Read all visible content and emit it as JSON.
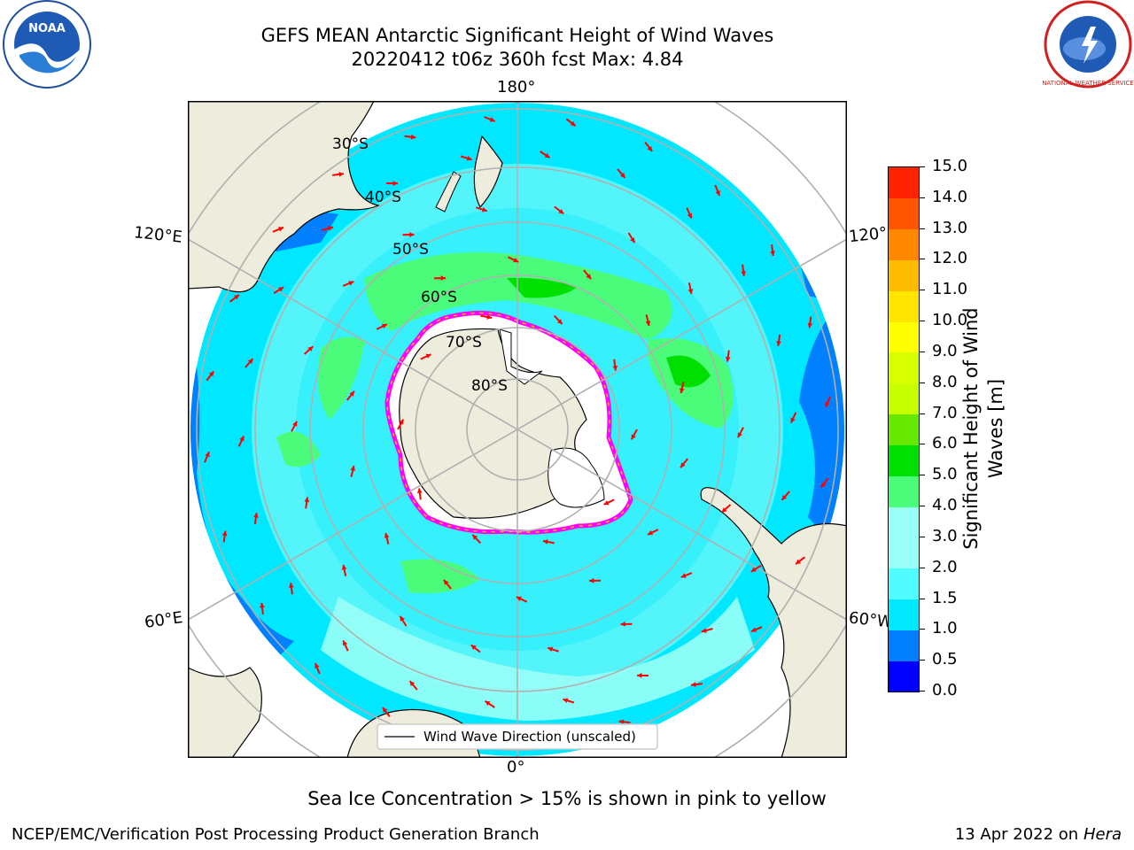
{
  "title": {
    "line1": "GEFS MEAN Antarctic Significant Height of Wind Waves",
    "line2": "20220412 t06z 360h fcst   Max: 4.84"
  },
  "logos": {
    "noaa": "NOAA",
    "nws": "NATIONAL WEATHER SERVICE"
  },
  "map": {
    "lon_labels": {
      "top": "180°",
      "bottom": "0°",
      "left_upper": "120°E",
      "left_lower": "60°E",
      "right_upper": "120°",
      "right_lower": "60°W"
    },
    "lat_labels": [
      "30°S",
      "40°S",
      "50°S",
      "60°S",
      "70°S",
      "80°S"
    ],
    "legend_label": "Wind Wave Direction (unscaled)",
    "colors": {
      "ocean_low": "#00e8ff",
      "ocean_mid": "#99fff6",
      "ocean_high": "#4bfc7a",
      "ocean_peak": "#00e000",
      "deep_low": "#0080ff",
      "land": "#eeecdc",
      "sea_ice_edge": "#ff00ff",
      "arrow": "#ff0000"
    }
  },
  "colorbar": {
    "label": "Significant Height of Wind Waves [m]",
    "label_line1": "Significant Height of Wind",
    "label_line2": "Waves [m]",
    "ticks": [
      "0.0",
      "0.5",
      "1.0",
      "1.5",
      "2.0",
      "3.0",
      "4.0",
      "5.0",
      "6.0",
      "7.0",
      "8.0",
      "9.0",
      "10.0",
      "11.0",
      "12.0",
      "13.0",
      "14.0",
      "15.0"
    ],
    "colors": [
      "#0000ff",
      "#0080ff",
      "#00e8ff",
      "#50fcff",
      "#99fff6",
      "#99fff6",
      "#4bfc7a",
      "#00e000",
      "#66e800",
      "#c8ff00",
      "#d8ff00",
      "#ffff00",
      "#ffe600",
      "#ffbb00",
      "#ff8800",
      "#ff5500",
      "#ff2200"
    ]
  },
  "subtitle": "Sea Ice Concentration > 15% is shown in pink to yellow",
  "footer": {
    "left": "NCEP/EMC/Verification Post Processing Product Generation Branch",
    "right_prefix": "13 Apr 2022 on ",
    "right_host": "Hera"
  }
}
